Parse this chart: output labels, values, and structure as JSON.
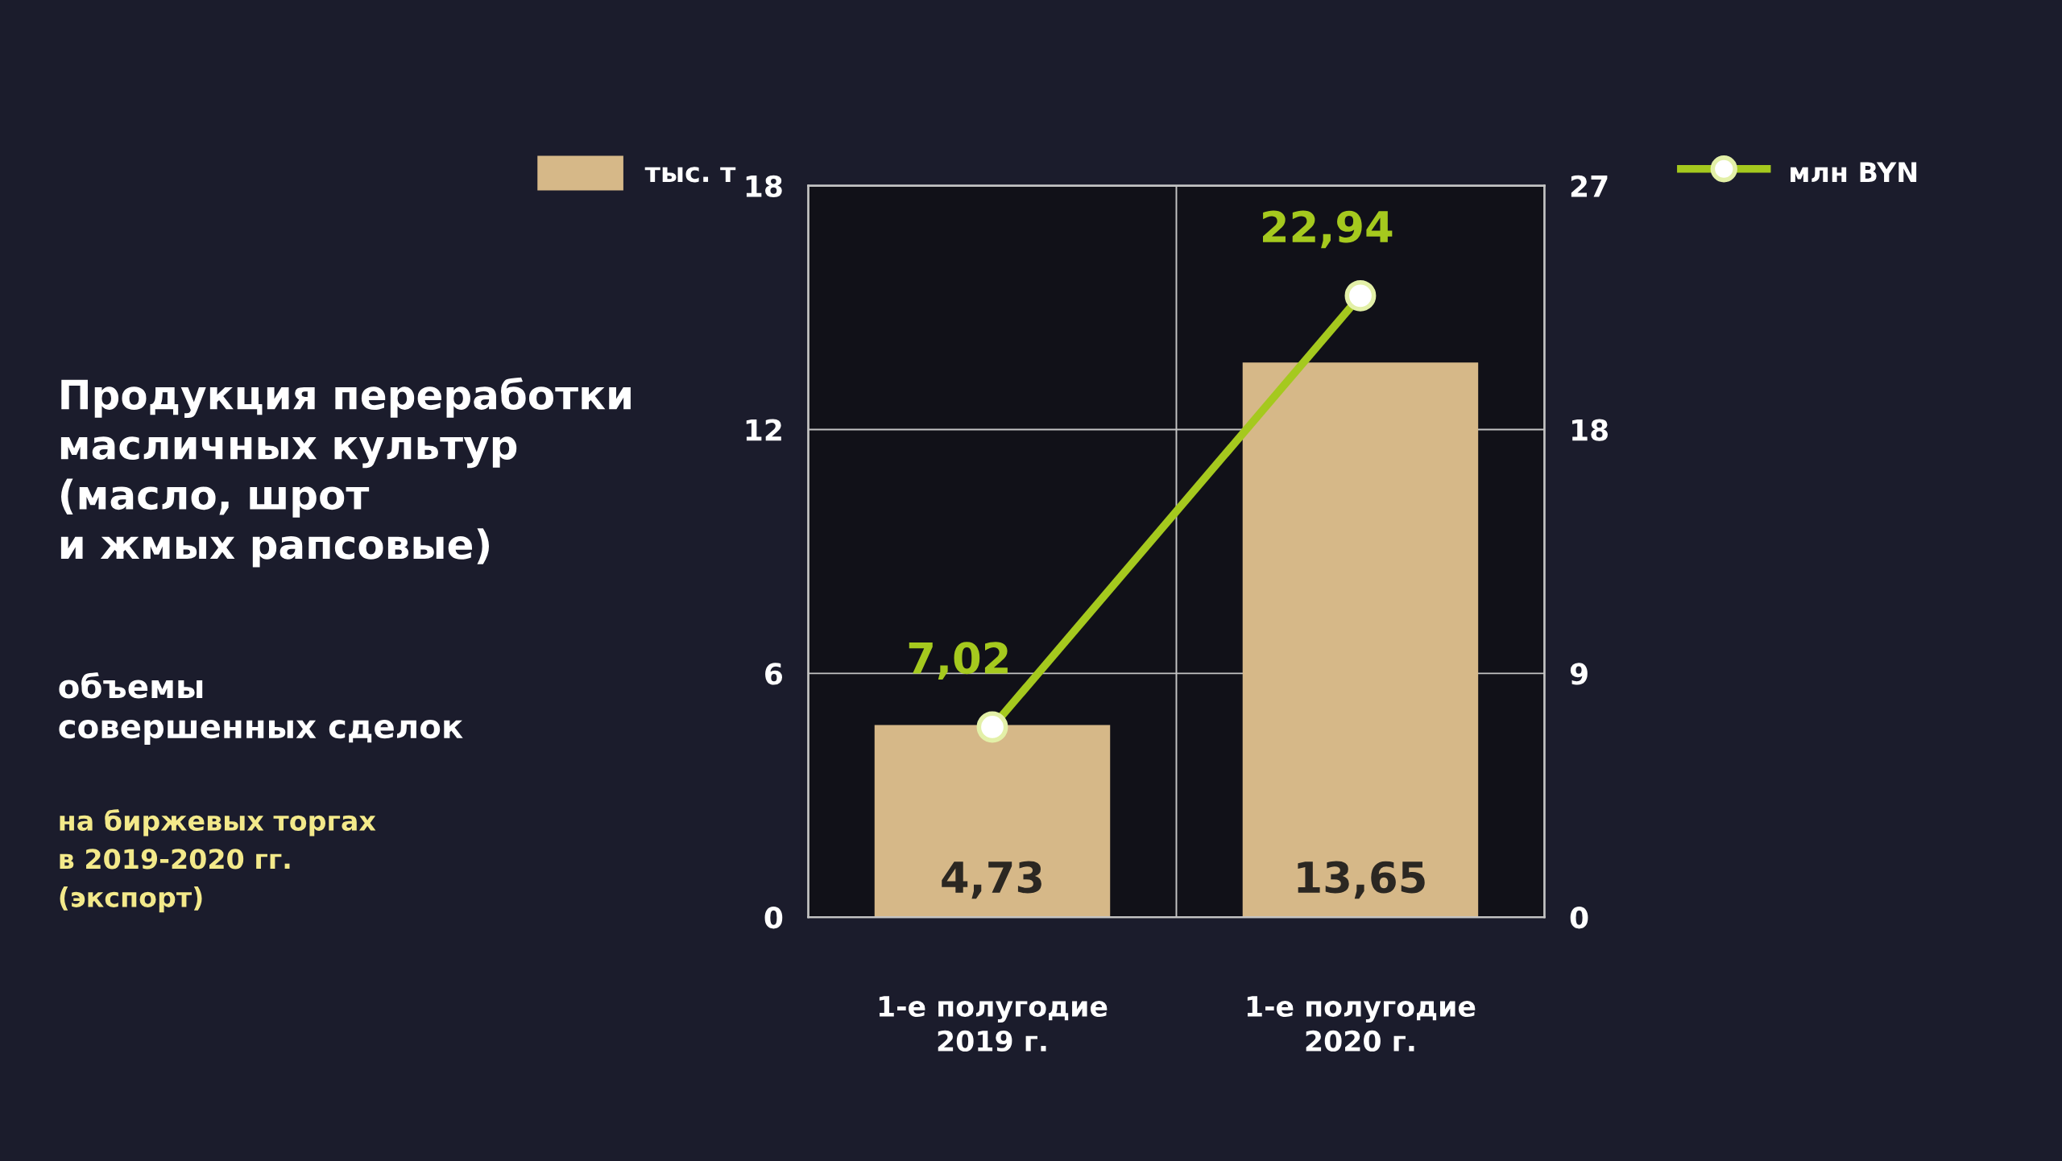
{
  "chart_data": {
    "type": "bar",
    "title": "Продукция переработки\nмасличных культур\n(масло, шрот\nи жмых рапсовые)",
    "subtitle": "объемы\nсовершенных сделок",
    "annotations": [
      "на биржевых торгах\nв 2019-2020 гг.\n(экспорт)"
    ],
    "categories": [
      "1-е полугодие\n2019 г.",
      "1-е полугодие\n2020 г."
    ],
    "series": [
      {
        "name": "тыс. т",
        "color": "#d6b888",
        "values": [
          4.73,
          13.65
        ],
        "value_labels": [
          "4,73",
          "13,65"
        ]
      },
      {
        "name": "млн BYN",
        "type": "line",
        "axis": "y2",
        "color": "#a5c91e",
        "marker": "circle",
        "values": [
          7.02,
          22.94
        ],
        "value_labels": [
          "7,02",
          "22,94"
        ]
      }
    ],
    "ylim": [
      0,
      18
    ],
    "yticks": [
      0,
      6,
      12,
      18
    ],
    "y2lim": [
      0,
      27
    ],
    "y2ticks": [
      0,
      9,
      18,
      27
    ],
    "grid": true,
    "legend": "top"
  }
}
